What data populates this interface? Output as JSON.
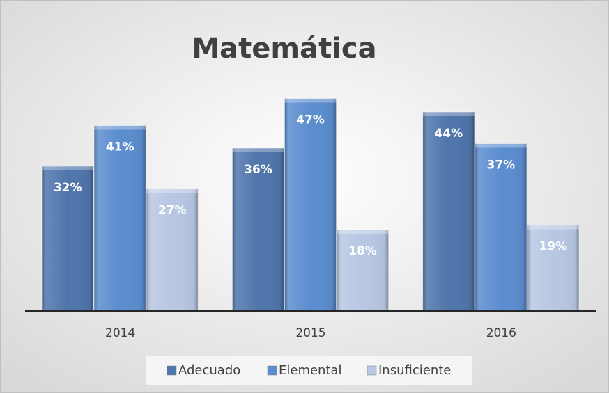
{
  "chart_data": {
    "type": "bar",
    "title": "Matemática",
    "categories": [
      "2014",
      "2015",
      "2016"
    ],
    "series": [
      {
        "name": "Adecuado",
        "color": "#4f75ab",
        "values": [
          32,
          36,
          44
        ],
        "value_labels": [
          "32%",
          "36%",
          "44%"
        ]
      },
      {
        "name": "Elemental",
        "color": "#5b8dcf",
        "values": [
          41,
          47,
          37
        ],
        "value_labels": [
          "41%",
          "47%",
          "37%"
        ]
      },
      {
        "name": "Insuficiente",
        "color": "#b7c7e3",
        "values": [
          27,
          18,
          19
        ],
        "value_labels": [
          "27%",
          "18%",
          "19%"
        ]
      }
    ],
    "ylim": [
      0,
      50
    ],
    "legend": "bottom"
  }
}
